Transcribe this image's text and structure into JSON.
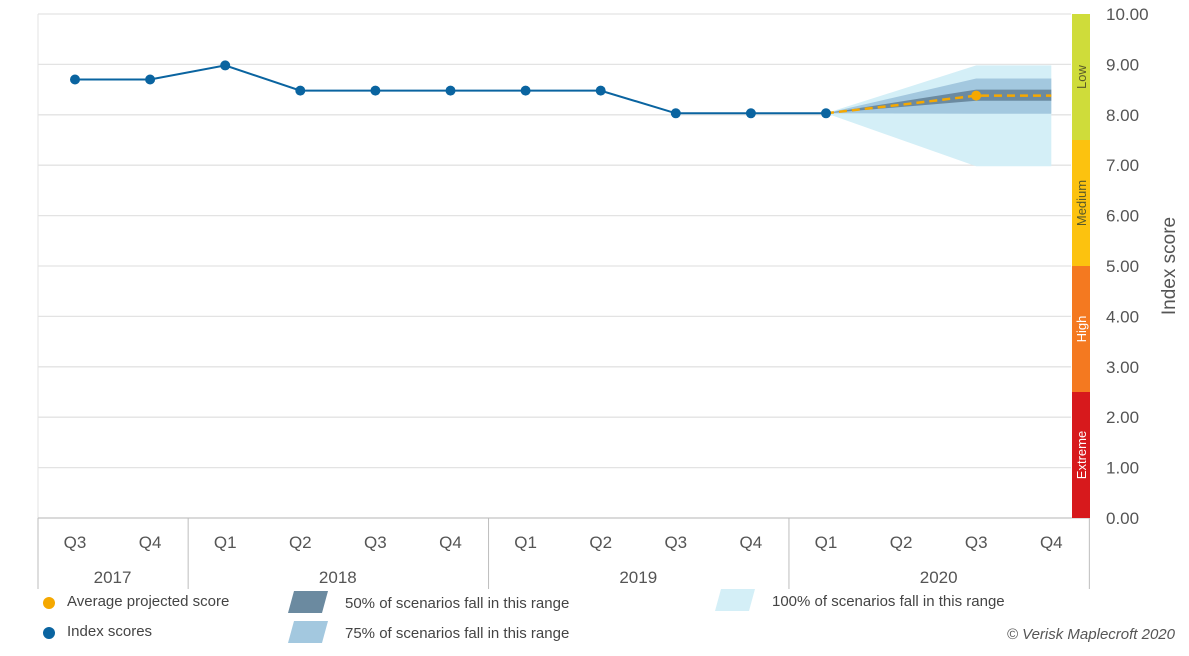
{
  "chart_data": {
    "type": "line",
    "ylabel": "Index score",
    "ylim": [
      0,
      10
    ],
    "yticks": [
      "0.00",
      "1.00",
      "2.00",
      "3.00",
      "4.00",
      "5.00",
      "6.00",
      "7.00",
      "8.00",
      "9.00",
      "10.00"
    ],
    "quarters": [
      "Q3",
      "Q4",
      "Q1",
      "Q2",
      "Q3",
      "Q4",
      "Q1",
      "Q2",
      "Q3",
      "Q4",
      "Q1",
      "Q2",
      "Q3",
      "Q4"
    ],
    "years": [
      {
        "label": "2017",
        "start": 0,
        "count": 2
      },
      {
        "label": "2018",
        "start": 2,
        "count": 4
      },
      {
        "label": "2019",
        "start": 6,
        "count": 4
      },
      {
        "label": "2020",
        "start": 10,
        "count": 4
      }
    ],
    "series": [
      {
        "name": "Index scores",
        "color": "#0a64a0",
        "x": [
          0,
          1,
          2,
          3,
          4,
          5,
          6,
          7,
          8,
          9,
          10
        ],
        "values": [
          8.7,
          8.7,
          8.98,
          8.48,
          8.48,
          8.48,
          8.48,
          8.48,
          8.03,
          8.03,
          8.03
        ]
      },
      {
        "name": "Average projected score",
        "color": "#f5a800",
        "x": [
          10,
          11,
          12,
          13
        ],
        "values": [
          8.03,
          8.2,
          8.38,
          8.38
        ]
      }
    ],
    "bands": [
      {
        "name": "100% of scenarios fall in this range",
        "color": "#d4eff7",
        "x": [
          10,
          12,
          13
        ],
        "low": [
          8.03,
          6.98,
          6.98
        ],
        "high": [
          8.03,
          8.98,
          8.98
        ]
      },
      {
        "name": "75% of scenarios fall in this range",
        "color": "#a3c8df",
        "x": [
          10,
          12,
          13
        ],
        "low": [
          8.03,
          8.02,
          8.02
        ],
        "high": [
          8.03,
          8.72,
          8.72
        ]
      },
      {
        "name": "50% of scenarios fall in this range",
        "color": "#6b8aa0",
        "x": [
          10,
          12,
          13
        ],
        "low": [
          8.03,
          8.28,
          8.28
        ],
        "high": [
          8.03,
          8.5,
          8.5
        ]
      }
    ],
    "risk_bands": [
      {
        "label": "Extreme",
        "from": 0,
        "to": 2.5,
        "color": "#d7191c"
      },
      {
        "label": "High",
        "from": 2.5,
        "to": 5,
        "color": "#f47920"
      },
      {
        "label": "Medium",
        "from": 5,
        "to": 7.5,
        "color": "#fcc20f"
      },
      {
        "label": "Low",
        "from": 7.5,
        "to": 10,
        "color": "#cfdc3a"
      }
    ]
  },
  "legend": {
    "avg_projected": "Average projected score",
    "index_scores": "Index scores",
    "p50": "50% of scenarios fall in this range",
    "p75": "75% of scenarios fall in this range",
    "p100": "100% of scenarios fall in this range",
    "colors": {
      "avg": "#f5a800",
      "index": "#0a64a0",
      "p50": "#6b8aa0",
      "p75": "#a3c8df",
      "p100": "#d4eff7"
    }
  },
  "copyright": "© Verisk Maplecroft 2020"
}
